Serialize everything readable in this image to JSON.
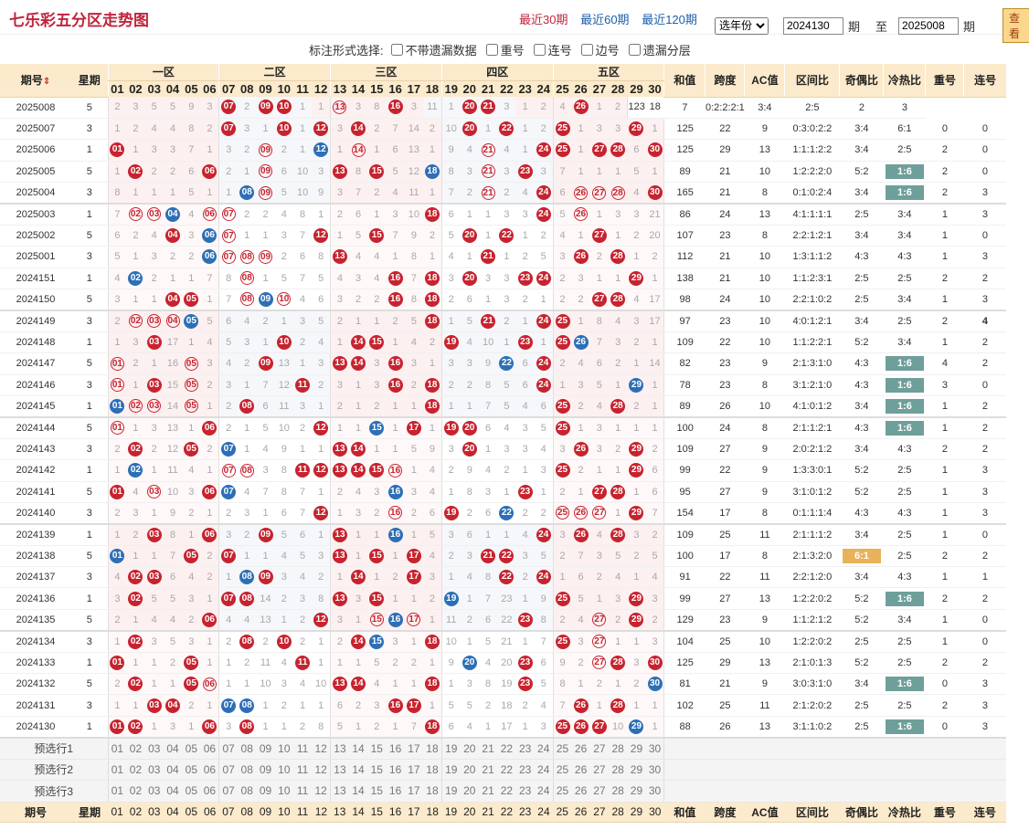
{
  "header": {
    "title": "七乐彩五分区走势图",
    "links": [
      "最近30期",
      "最近60期",
      "最近120期"
    ],
    "active_link": "最近30期",
    "year_select": "选年份",
    "from_value": "2024130",
    "from_label": "期",
    "to_label": "至",
    "to_value": "2025008",
    "to_suffix": "期",
    "view_button": "查看"
  },
  "options": {
    "label": "标注形式选择:",
    "items": [
      "不带遗漏数据",
      "重号",
      "连号",
      "边号",
      "遗漏分层"
    ]
  },
  "columns": {
    "period": "期号",
    "week": "星期",
    "zones": [
      "一区",
      "二区",
      "三区",
      "四区",
      "五区"
    ],
    "numbers": [
      "01",
      "02",
      "03",
      "04",
      "05",
      "06",
      "07",
      "08",
      "09",
      "10",
      "11",
      "12",
      "13",
      "14",
      "15",
      "16",
      "17",
      "18",
      "19",
      "20",
      "21",
      "22",
      "23",
      "24",
      "25",
      "26",
      "27",
      "28",
      "29",
      "30"
    ],
    "stats": [
      "和值",
      "跨度",
      "AC值",
      "区间比",
      "奇偶比",
      "冷热比",
      "重号",
      "连号"
    ]
  },
  "rows": [
    {
      "p": "2025008",
      "w": "5",
      "c": "2,3,5,5,9,3|*8,2,*10,*11,1|1,o14,3,8,*17,3|11,1,*21,*22,3|1,2,4,*28,1,2",
      "s": [
        "123",
        "18",
        "7",
        "0:2:2:2:1",
        "3:4",
        "2:5",
        "2",
        "3"
      ]
    },
    {
      "p": "2025007",
      "w": "3",
      "c": "1,2,4,4,8,2|*7,3,1,*10,1,*12|3,*14,2,7,14,2|10,*20,1,*22,1,2|*25,1,3,3,*29,1",
      "s": [
        "125",
        "22",
        "9",
        "0:3:0:2:2",
        "3:4",
        "6:1",
        "0",
        "0"
      ]
    },
    {
      "p": "2025006",
      "w": "1",
      "c": "*1,1,3,3,7,1|3,2,o9,2,1,b12|1,o14,1,6,13,1|9,4,o21,4,1,*24|*25,1,*26,*27,6,*30",
      "s": [
        "125",
        "29",
        "13",
        "1:1:1:2:2",
        "3:4",
        "2:5",
        "2",
        "0"
      ]
    },
    {
      "p": "2025005",
      "w": "5",
      "c": "1,*2,2,2,6,*6|2,1,o9,6,10,3|*13,8,*15,5,12,b18|8,3,o21,3,*23,3|7,1,1,1,5,1",
      "s": [
        "89",
        "21",
        "10",
        "1:2:2:2:0",
        "5:2",
        "T1:6",
        "2",
        "0"
      ]
    },
    {
      "p": "2025004",
      "w": "3",
      "c": "8,1,1,1,5,1|1,b8,o9,5,10,9|3,7,2,4,11,1|7,2,o21,2,4,*24|6,o26,o27,o28,4,*30",
      "s": [
        "165",
        "21",
        "8",
        "0:1:0:2:4",
        "3:4",
        "T1:6",
        "2",
        "3"
      ]
    },
    {
      "p": "2025003",
      "w": "1",
      "c": "7,o2,o3,b4,4,o6|o7,2,2,4,8,1|2,6,1,3,10,*18|6,1,1,3,3,*24|5,o26,1,3,3,21",
      "s": [
        "86",
        "24",
        "13",
        "4:1:1:1:1",
        "2:5",
        "3:4",
        "1",
        "3"
      ]
    },
    {
      "p": "2025002",
      "w": "5",
      "c": "6,2,4,*4,3,b6|o7,1,1,3,7,*12|1,5,*15,7,9,2|5,*20,1,*22,1,2|4,1,*27,1,2,20",
      "s": [
        "107",
        "23",
        "8",
        "2:2:1:2:1",
        "3:4",
        "3:4",
        "1",
        "0"
      ]
    },
    {
      "p": "2025001",
      "w": "3",
      "c": "5,1,3,2,2,b6|o7,o8,o9,2,6,8|*13,4,4,1,8,1|4,1,*21,1,2,5|3,*26,2,*28,1,2",
      "s": [
        "112",
        "21",
        "10",
        "1:3:1:1:2",
        "4:3",
        "4:3",
        "1",
        "3"
      ]
    },
    {
      "p": "2024151",
      "w": "1",
      "c": "4,b2,2,1,1,7|8,o8,1,5,7,5|4,3,4,*16,7,*18|3,*20,3,3,*23,*24|2,3,1,1,*29,1",
      "s": [
        "138",
        "21",
        "10",
        "1:1:2:3:1",
        "2:5",
        "2:5",
        "2",
        "2"
      ]
    },
    {
      "p": "2024150",
      "w": "5",
      "c": "3,1,1,*4,*5,1|7,o8,b9,o10,4,6|3,2,2,*16,8,*18|2,6,1,3,2,1|2,2,*27,*28,4,17",
      "s": [
        "98",
        "24",
        "10",
        "2:2:1:0:2",
        "2:5",
        "3:4",
        "1",
        "3"
      ]
    },
    {
      "p": "2024149",
      "w": "3",
      "c": "2,o2,o3,o4,b5,5|6,4,2,1,3,5|2,1,1,2,5,*18|1,5,*21,2,1,*24|*25,1,8,4,3,17",
      "s": [
        "97",
        "23",
        "10",
        "4:0:1:2:1",
        "3:4",
        "2:5",
        "2",
        "G4"
      ]
    },
    {
      "p": "2024148",
      "w": "1",
      "c": "1,3,*3,17,1,4|5,3,1,*10,2,4|1,*14,*15,1,4,2|*19,4,10,1,*23,1|*25,b26,7,3,2,1",
      "s": [
        "109",
        "22",
        "10",
        "1:1:2:2:1",
        "5:2",
        "3:4",
        "1",
        "2"
      ]
    },
    {
      "p": "2024147",
      "w": "5",
      "c": "o1,2,1,16,o5,3|4,2,*9,13,1,3|*13,*14,3,*16,3,1|3,3,9,b22,6,*24|2,4,6,2,1,14",
      "s": [
        "82",
        "23",
        "9",
        "2:1:3:1:0",
        "4:3",
        "T1:6",
        "R4",
        "2"
      ]
    },
    {
      "p": "2024146",
      "w": "3",
      "c": "o1,1,*3,15,o5,2|3,1,7,12,*11,2|3,1,3,*16,2,*18|2,2,8,5,6,*24|1,3,5,1,b29,1",
      "s": [
        "78",
        "23",
        "8",
        "3:1:2:1:0",
        "4:3",
        "T1:6",
        "3",
        "0"
      ]
    },
    {
      "p": "2024145",
      "w": "1",
      "c": "b1,o2,o3,14,o5,1|2,*8,6,11,3,1|2,1,2,1,1,*18|1,1,7,5,4,6|*25,2,4,*28,2,1",
      "s": [
        "89",
        "26",
        "10",
        "4:1:0:1:2",
        "3:4",
        "T1:6",
        "1",
        "2"
      ]
    },
    {
      "p": "2024144",
      "w": "5",
      "c": "o1,1,3,13,1,*6|2,1,5,10,2,*12|1,1,b15,1,*17,1|*19,*20,6,4,3,5|*25,1,3,1,1,1",
      "s": [
        "100",
        "24",
        "8",
        "2:1:1:2:1",
        "4:3",
        "T1:6",
        "1",
        "2"
      ]
    },
    {
      "p": "2024143",
      "w": "3",
      "c": "2,*2,2,12,*5,2|b7,1,4,9,1,1|*13,*14,1,1,5,9|3,*20,1,3,3,4|3,*26,3,2,*29,2",
      "s": [
        "109",
        "27",
        "9",
        "2:0:2:1:2",
        "3:4",
        "4:3",
        "2",
        "2"
      ]
    },
    {
      "p": "2024142",
      "w": "1",
      "c": "1,b2,1,11,4,1|o7,o8,3,8,*11,*12|*13,*14,*15,o16,1,4|2,9,4,2,1,3|*25,2,1,1,*29,6",
      "s": [
        "99",
        "22",
        "9",
        "1:3:3:0:1",
        "5:2",
        "2:5",
        "1",
        "3"
      ]
    },
    {
      "p": "2024141",
      "w": "5",
      "c": "*1,4,o3,10,3,*6|b7,4,7,8,7,1|2,4,3,b16,3,4|1,8,3,1,*23,1|2,1,*27,*28,1,6",
      "s": [
        "95",
        "27",
        "9",
        "3:1:0:1:2",
        "5:2",
        "2:5",
        "1",
        "3"
      ]
    },
    {
      "p": "2024140",
      "w": "3",
      "c": "2,3,1,9,2,1|2,3,1,6,7,*12|1,3,2,o16,2,6|*19,2,6,b22,2,2|o25,o26,o27,1,*29,7",
      "s": [
        "154",
        "17",
        "8",
        "0:1:1:1:4",
        "4:3",
        "4:3",
        "1",
        "3"
      ]
    },
    {
      "p": "2024139",
      "w": "1",
      "c": "1,2,*3,8,1,*6|3,2,*9,5,6,1|*13,1,1,b16,1,5|3,6,1,1,4,*24|3,*26,4,*28,3,2",
      "s": [
        "109",
        "25",
        "11",
        "2:1:1:1:2",
        "3:4",
        "2:5",
        "1",
        "0"
      ]
    },
    {
      "p": "2024138",
      "w": "5",
      "c": "b1,1,1,7,*5,2|*7,1,1,4,5,3|*13,1,*15,1,*17,4|2,3,*21,*22,3,5|2,7,3,5,2,5",
      "s": [
        "100",
        "17",
        "8",
        "2:1:3:2:0",
        "Y6:1",
        "2:5",
        "2",
        "2"
      ]
    },
    {
      "p": "2024137",
      "w": "3",
      "c": "4,*2,*3,6,4,2|1,b8,*9,3,4,2|1,*14,1,2,*17,3|1,4,8,*22,2,*24|1,6,2,4,1,4",
      "s": [
        "91",
        "22",
        "11",
        "2:2:1:2:0",
        "3:4",
        "4:3",
        "1",
        "1"
      ]
    },
    {
      "p": "2024136",
      "w": "1",
      "c": "3,*2,5,5,3,1|*7,*8,14,2,3,8|*13,3,*15,1,1,2|b19,1,7,23,1,9|*25,5,1,3,*29,3",
      "s": [
        "99",
        "27",
        "13",
        "1:2:2:0:2",
        "5:2",
        "T1:6",
        "2",
        "2"
      ]
    },
    {
      "p": "2024135",
      "w": "5",
      "c": "2,1,4,4,2,*6|4,4,13,1,2,*12|3,1,o15,b16,o17,1|11,2,6,22,*23,8|2,4,o27,2,*29,2",
      "s": [
        "129",
        "23",
        "9",
        "1:1:2:1:2",
        "5:2",
        "3:4",
        "1",
        "0"
      ]
    },
    {
      "p": "2024134",
      "w": "3",
      "c": "1,*2,3,5,3,1|2,*8,2,*10,2,1|2,*14,b15,3,1,*18|10,1,5,21,1,7|*25,3,o27,1,1,3",
      "s": [
        "104",
        "25",
        "10",
        "1:2:2:0:2",
        "2:5",
        "2:5",
        "1",
        "0"
      ]
    },
    {
      "p": "2024133",
      "w": "1",
      "c": "*1,1,1,2,*5,1|1,2,11,4,*11,1|1,1,5,2,2,1|9,b20,4,20,*23,6|9,2,o27,*28,3,*30",
      "s": [
        "125",
        "29",
        "13",
        "2:1:0:1:3",
        "5:2",
        "2:5",
        "2",
        "2"
      ]
    },
    {
      "p": "2024132",
      "w": "5",
      "c": "2,*2,1,1,*5,o6|1,1,10,3,4,10|*13,*14,4,1,1,*18|1,3,8,19,*23,5|8,1,2,1,2,b30",
      "s": [
        "81",
        "21",
        "9",
        "3:0:3:1:0",
        "3:4",
        "T1:6",
        "0",
        "3"
      ]
    },
    {
      "p": "2024131",
      "w": "3",
      "c": "1,1,*3,*4,2,1|b7,b8,1,2,1,1|6,2,3,*16,*17,1|5,5,2,18,2,4|7,*26,1,*28,1,1",
      "s": [
        "102",
        "25",
        "11",
        "2:1:2:0:2",
        "2:5",
        "2:5",
        "2",
        "3"
      ]
    },
    {
      "p": "2024130",
      "w": "1",
      "c": "*1,*2,1,3,1,*6|3,*8,1,1,2,8|5,1,2,1,7,*18|6,4,1,17,1,3|*25,*26,*27,10,b29,1",
      "s": [
        "88",
        "26",
        "13",
        "3:1:1:0:2",
        "2:5",
        "T1:6",
        "0",
        "3"
      ]
    }
  ],
  "predict": [
    "预选行1",
    "预选行2",
    "预选行3"
  ]
}
